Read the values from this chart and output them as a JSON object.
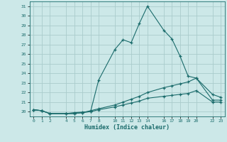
{
  "xlabel": "Humidex (Indice chaleur)",
  "bg_color": "#cce8e8",
  "grid_color": "#aacccc",
  "line_color": "#1a6b6b",
  "x_ticks": [
    0,
    1,
    2,
    4,
    5,
    6,
    7,
    8,
    10,
    11,
    12,
    13,
    14,
    16,
    17,
    18,
    19,
    20,
    22,
    23
  ],
  "series": [
    {
      "x": [
        0,
        1,
        2,
        4,
        5,
        6,
        7,
        8,
        10,
        11,
        12,
        13,
        14,
        16,
        17,
        18,
        19,
        20,
        22,
        23
      ],
      "y": [
        20.2,
        20.1,
        19.8,
        19.8,
        19.8,
        19.9,
        20.0,
        23.3,
        26.5,
        27.5,
        27.2,
        29.2,
        31.0,
        28.5,
        27.6,
        25.8,
        23.7,
        23.5,
        21.8,
        21.5
      ]
    },
    {
      "x": [
        0,
        1,
        2,
        4,
        5,
        6,
        7,
        8,
        10,
        11,
        12,
        13,
        14,
        16,
        17,
        18,
        19,
        20,
        22,
        23
      ],
      "y": [
        20.2,
        20.1,
        19.8,
        19.8,
        19.8,
        19.9,
        20.1,
        20.3,
        20.7,
        21.0,
        21.3,
        21.6,
        22.0,
        22.5,
        22.7,
        22.9,
        23.1,
        23.5,
        21.2,
        21.2
      ]
    },
    {
      "x": [
        0,
        1,
        2,
        4,
        5,
        6,
        7,
        8,
        10,
        11,
        12,
        13,
        14,
        16,
        17,
        18,
        19,
        20,
        22,
        23
      ],
      "y": [
        20.2,
        20.1,
        19.8,
        19.8,
        19.9,
        19.95,
        20.0,
        20.2,
        20.5,
        20.7,
        20.9,
        21.1,
        21.4,
        21.6,
        21.7,
        21.8,
        21.9,
        22.2,
        21.0,
        21.0
      ]
    }
  ],
  "ylim": [
    19.5,
    31.5
  ],
  "xlim": [
    -0.5,
    23.5
  ],
  "yticks": [
    20,
    21,
    22,
    23,
    24,
    25,
    26,
    27,
    28,
    29,
    30,
    31
  ]
}
